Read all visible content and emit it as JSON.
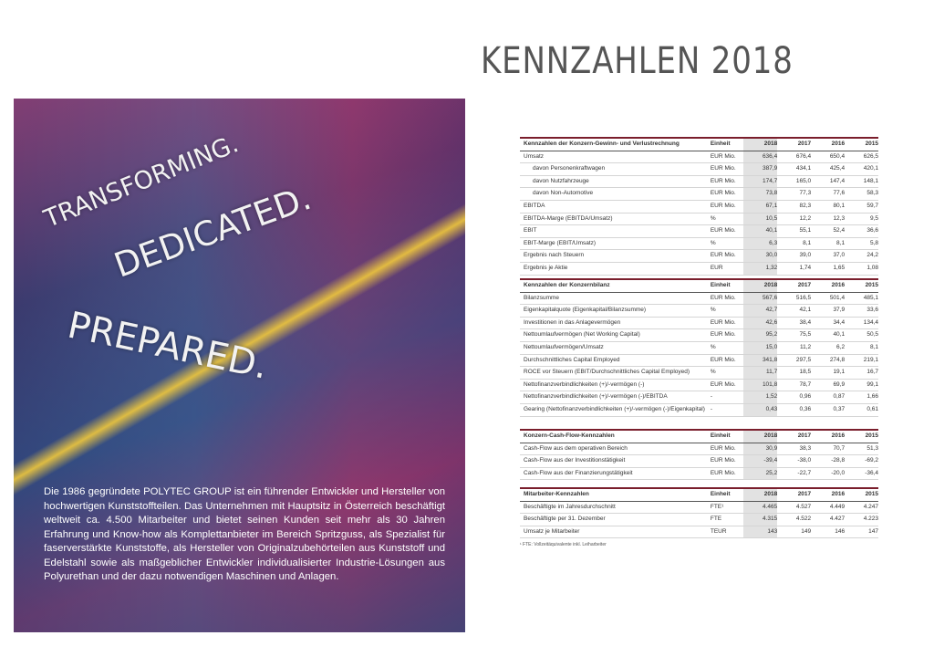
{
  "page": {
    "title": "KENNZAHLEN 2018",
    "image": {
      "headline": [
        "TRANSFORMING.",
        "DEDICATED.",
        "PREPARED."
      ],
      "text": "Die 1986 gegründete POLYTEC GROUP ist ein führender Entwickler und Hersteller von hochwertigen Kunststoffteilen. Das Unternehmen mit Hauptsitz in Österreich beschäftigt weltweit ca. 4.500 Mitarbeiter und bietet seinen Kunden seit mehr als 30 Jahren Erfahrung und Know-how als Komplettanbieter im Bereich Spritzguss, als Spezialist für faserverstärkte Kunststoffe, als Hersteller von Originalzubehörteilen aus Kunststoff und Edelstahl sowie als maßgeblicher Entwickler individualisierter Industrie-Lösungen aus Polyurethan und der dazu notwendigen Maschinen und Anlagen."
    },
    "tables": [
      {
        "header": [
          "Kennzahlen der Konzern-Gewinn- und Verlustrechnung",
          "Einheit",
          "2018",
          "2017",
          "2016",
          "2015"
        ],
        "rows": [
          [
            "Umsatz",
            "EUR Mio.",
            "636,4",
            "676,4",
            "650,4",
            "626,5"
          ],
          [
            "davon Personenkraftwagen",
            "EUR Mio.",
            "387,9",
            "434,1",
            "425,4",
            "420,1"
          ],
          [
            "davon Nutzfahrzeuge",
            "EUR Mio.",
            "174,7",
            "165,0",
            "147,4",
            "148,1"
          ],
          [
            "davon Non-Automotive",
            "EUR Mio.",
            "73,8",
            "77,3",
            "77,6",
            "58,3"
          ],
          [
            "EBITDA",
            "EUR Mio.",
            "67,1",
            "82,3",
            "80,1",
            "59,7"
          ],
          [
            "EBITDA-Marge (EBITDA/Umsatz)",
            "%",
            "10,5",
            "12,2",
            "12,3",
            "9,5"
          ],
          [
            "EBIT",
            "EUR Mio.",
            "40,1",
            "55,1",
            "52,4",
            "36,6"
          ],
          [
            "EBIT-Marge (EBIT/Umsatz)",
            "%",
            "6,3",
            "8,1",
            "8,1",
            "5,8"
          ],
          [
            "Ergebnis nach Steuern",
            "EUR Mio.",
            "30,0",
            "39,0",
            "37,0",
            "24,2"
          ],
          [
            "Ergebnis je Aktie",
            "EUR",
            "1,32",
            "1,74",
            "1,65",
            "1,08"
          ]
        ]
      },
      {
        "header": [
          "Kennzahlen der Konzernbilanz",
          "Einheit",
          "2018",
          "2017",
          "2016",
          "2015"
        ],
        "rows": [
          [
            "Bilanzsumme",
            "EUR Mio.",
            "567,6",
            "516,5",
            "501,4",
            "485,1"
          ],
          [
            "Eigenkapitalquote (Eigenkapital/Bilanzsumme)",
            "%",
            "42,7",
            "42,1",
            "37,9",
            "33,6"
          ],
          [
            "Investitionen in das Anlagevermögen",
            "EUR Mio.",
            "42,6",
            "38,4",
            "34,4",
            "134,4"
          ],
          [
            "Nettoumlaufvermögen (Net Working Capital)",
            "EUR Mio.",
            "95,2",
            "75,5",
            "40,1",
            "50,5"
          ],
          [
            "Nettoumlaufvermögen/Umsatz",
            "%",
            "15,0",
            "11,2",
            "6,2",
            "8,1"
          ],
          [
            "Durchschnittliches Capital Employed",
            "EUR Mio.",
            "341,8",
            "297,5",
            "274,8",
            "219,1"
          ],
          [
            "ROCE vor Steuern (EBIT/Durchschnittliches Capital Employed)",
            "%",
            "11,7",
            "18,5",
            "19,1",
            "16,7"
          ],
          [
            "Nettofinanzverbindlichkeiten (+)/-vermögen (-)",
            "EUR Mio.",
            "101,8",
            "78,7",
            "69,9",
            "99,1"
          ],
          [
            "Nettofinanzverbindlichkeiten (+)/-vermögen (-)/EBITDA",
            "-",
            "1,52",
            "0,96",
            "0,87",
            "1,66"
          ],
          [
            "Gearing (Nettofinanzverbindlichkeiten (+)/-vermögen (-)/Eigenkapital)",
            "-",
            "0,43",
            "0,36",
            "0,37",
            "0,61"
          ]
        ]
      },
      {
        "header": [
          "Konzern-Cash-Flow-Kennzahlen",
          "Einheit",
          "2018",
          "2017",
          "2016",
          "2015"
        ],
        "rows": [
          [
            "Cash-Flow aus dem operativen Bereich",
            "EUR Mio.",
            "30,9",
            "38,3",
            "70,7",
            "51,3"
          ],
          [
            "Cash-Flow aus der Investitionstätigkeit",
            "EUR Mio.",
            "-39,4",
            "-38,0",
            "-28,8",
            "-69,2"
          ],
          [
            "Cash-Flow aus der Finanzierungstätigkeit",
            "EUR Mio.",
            "25,2",
            "-22,7",
            "-20,0",
            "-36,4"
          ]
        ]
      },
      {
        "header": [
          "Mitarbeiter-Kennzahlen",
          "Einheit",
          "2018",
          "2017",
          "2016",
          "2015"
        ],
        "rows": [
          [
            "Beschäftigte im Jahresdurchschnitt",
            "FTE¹",
            "4.465",
            "4.527",
            "4.449",
            "4.247"
          ],
          [
            "Beschäftigte per 31. Dezember",
            "FTE",
            "4.315",
            "4.522",
            "4.427",
            "4.223"
          ],
          [
            "Umsatz je Mitarbeiter",
            "TEUR",
            "143",
            "149",
            "146",
            "147"
          ]
        ],
        "footnote": "¹ FTE: Vollzeitäquivalente inkl. Leiharbeiter"
      }
    ]
  }
}
